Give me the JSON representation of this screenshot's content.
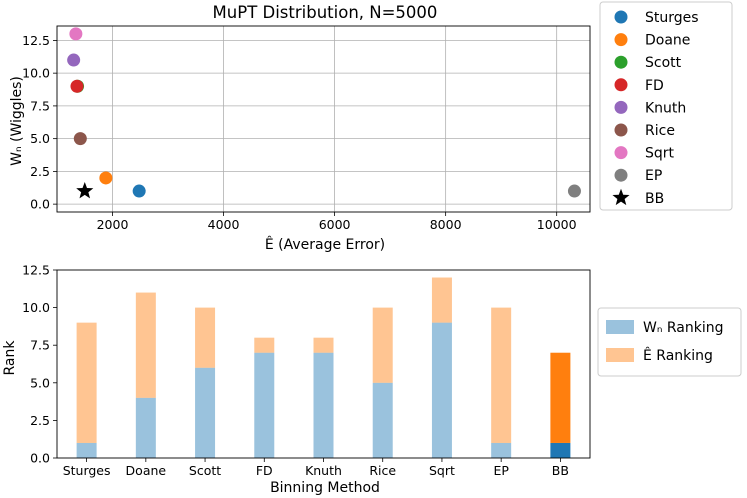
{
  "chart_data": [
    {
      "type": "scatter",
      "title": "MuPT Distribution, N=5000",
      "xlabel": "Ê (Average Error)",
      "ylabel": "Wₙ (Wiggles)",
      "xlim": [
        1000,
        10600
      ],
      "ylim": [
        -0.6,
        13.6
      ],
      "xticks": [
        2000,
        4000,
        6000,
        8000,
        10000
      ],
      "xtick_labels": [
        "2000",
        "4000",
        "6000",
        "8000",
        "10000"
      ],
      "yticks": [
        0,
        2.5,
        5,
        7.5,
        10,
        12.5
      ],
      "ytick_labels": [
        "0.0",
        "2.5",
        "5.0",
        "7.5",
        "10.0",
        "12.5"
      ],
      "grid": true,
      "legend_position": "outside-right",
      "points": [
        {
          "name": "Sturges",
          "x": 2480,
          "y": 1,
          "color": "#1f77b4",
          "marker": "circle"
        },
        {
          "name": "Doane",
          "x": 1880,
          "y": 2,
          "color": "#ff7f0e",
          "marker": "circle"
        },
        {
          "name": "Scott",
          "x": 1370,
          "y": 9,
          "color": "#2ca02c",
          "marker": "circle"
        },
        {
          "name": "FD",
          "x": 1360,
          "y": 9,
          "color": "#d62728",
          "marker": "circle"
        },
        {
          "name": "Knuth",
          "x": 1300,
          "y": 11,
          "color": "#9467bd",
          "marker": "circle"
        },
        {
          "name": "Rice",
          "x": 1420,
          "y": 5,
          "color": "#8c564b",
          "marker": "circle"
        },
        {
          "name": "Sqrt",
          "x": 1340,
          "y": 13,
          "color": "#e377c2",
          "marker": "circle"
        },
        {
          "name": "EP",
          "x": 10320,
          "y": 1,
          "color": "#7f7f7f",
          "marker": "circle"
        },
        {
          "name": "BB",
          "x": 1500,
          "y": 1,
          "color": "#000000",
          "marker": "star"
        }
      ]
    },
    {
      "type": "bar",
      "stacked": true,
      "xlabel": "Binning Method",
      "ylabel": "Rank",
      "ylim": [
        0,
        12.5
      ],
      "yticks": [
        0,
        2.5,
        5,
        7.5,
        10,
        12.5
      ],
      "ytick_labels": [
        "0.0",
        "2.5",
        "5.0",
        "7.5",
        "10.0",
        "12.5"
      ],
      "grid": false,
      "legend_position": "outside-right",
      "categories": [
        "Sturges",
        "Doane",
        "Scott",
        "FD",
        "Knuth",
        "Rice",
        "Sqrt",
        "EP",
        "BB"
      ],
      "series": [
        {
          "name": "Wₙ Ranking",
          "values": [
            1,
            4,
            6,
            7,
            7,
            5,
            9,
            1,
            1
          ],
          "color": "#1f77b4",
          "alpha": 0.45,
          "highlight_color": "#1f77b4"
        },
        {
          "name": "Ê Ranking",
          "values": [
            8,
            7,
            4,
            1,
            1,
            5,
            3,
            9,
            6
          ],
          "color": "#ff7f0e",
          "alpha": 0.45,
          "highlight_color": "#ff7f0e"
        }
      ],
      "highlight_category": "BB"
    }
  ]
}
